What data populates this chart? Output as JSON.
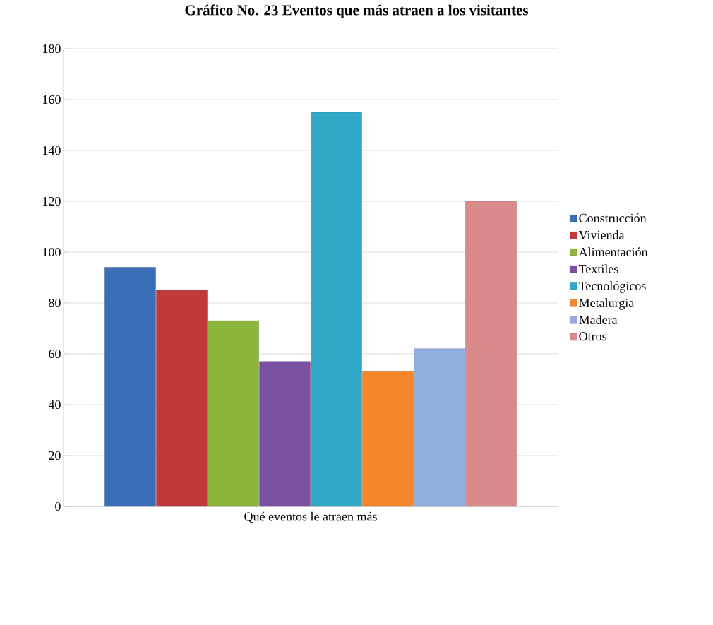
{
  "chart_data": {
    "type": "bar",
    "title": "Gráfico No. 23 Eventos que más atraen a los visitantes",
    "categories": [
      "Qué eventos le atraen más"
    ],
    "series": [
      {
        "name": "Construcción",
        "color": "#3a6fb8",
        "values": [
          94
        ]
      },
      {
        "name": "Vivienda",
        "color": "#c0393b",
        "values": [
          85
        ]
      },
      {
        "name": "Alimentación",
        "color": "#8db53c",
        "values": [
          73
        ]
      },
      {
        "name": "Textiles",
        "color": "#7a51a1",
        "values": [
          57
        ]
      },
      {
        "name": "Tecnológicos",
        "color": "#31a9c6",
        "values": [
          155
        ]
      },
      {
        "name": "Metalurgia",
        "color": "#f6862a",
        "values": [
          53
        ]
      },
      {
        "name": "Madera",
        "color": "#8eaedc",
        "values": [
          62
        ]
      },
      {
        "name": "Otros",
        "color": "#d98b8c",
        "values": [
          120
        ]
      }
    ],
    "ylim": [
      0,
      180
    ],
    "yticks": [
      0,
      20,
      40,
      60,
      80,
      100,
      120,
      140,
      160,
      180
    ],
    "grid": "y",
    "legend": "right"
  }
}
